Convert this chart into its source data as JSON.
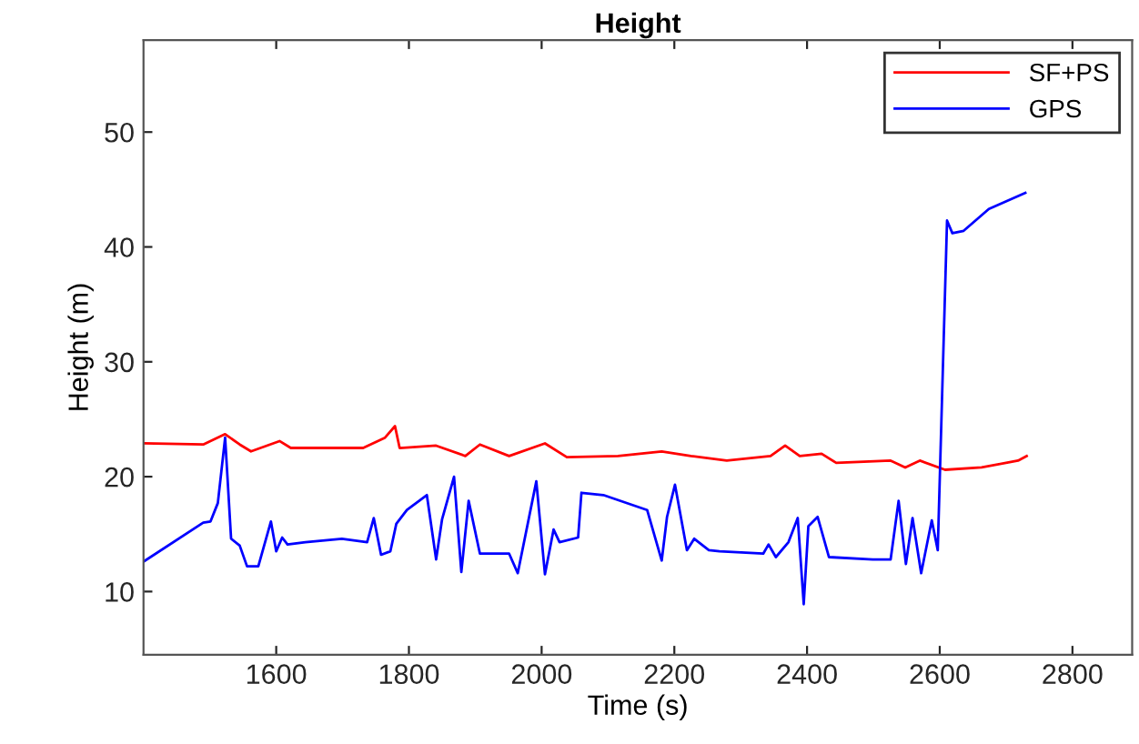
{
  "chart_data": {
    "type": "line",
    "title": "Height",
    "xlabel": "Time (s)",
    "ylabel": "Height (m)",
    "xlim": [
      1400,
      2890
    ],
    "ylim": [
      4.5,
      58
    ],
    "xticks": [
      1600,
      1800,
      2000,
      2200,
      2400,
      2600,
      2800
    ],
    "yticks": [
      10,
      20,
      30,
      40,
      50
    ],
    "grid": false,
    "legend": "top right",
    "series": [
      {
        "name": "SF+PS",
        "color": "#ff0000",
        "x": [
          1400,
          1490,
          1523,
          1545,
          1562,
          1605,
          1622,
          1731,
          1764,
          1779,
          1786,
          1841,
          1885,
          1907,
          1951,
          2005,
          2038,
          2115,
          2181,
          2225,
          2279,
          2345,
          2367,
          2389,
          2422,
          2444,
          2526,
          2548,
          2570,
          2608,
          2663,
          2718,
          2731
        ],
        "values": [
          22.9,
          22.8,
          23.7,
          22.8,
          22.2,
          23.1,
          22.5,
          22.5,
          23.4,
          24.4,
          22.5,
          22.7,
          21.8,
          22.8,
          21.8,
          22.9,
          21.7,
          21.8,
          22.2,
          21.8,
          21.4,
          21.8,
          22.7,
          21.8,
          22.0,
          21.2,
          21.4,
          20.8,
          21.4,
          20.6,
          20.8,
          21.4,
          21.8
        ]
      },
      {
        "name": "GPS",
        "color": "#0000ff",
        "x": [
          1400,
          1490,
          1501,
          1512,
          1523,
          1532,
          1545,
          1556,
          1573,
          1592,
          1600,
          1609,
          1617,
          1644,
          1699,
          1737,
          1747,
          1758,
          1772,
          1781,
          1797,
          1827,
          1841,
          1850,
          1868,
          1879,
          1890,
          1907,
          1951,
          1964,
          1992,
          2005,
          2018,
          2027,
          2055,
          2060,
          2093,
          2159,
          2181,
          2189,
          2201,
          2219,
          2230,
          2252,
          2268,
          2334,
          2342,
          2353,
          2372,
          2386,
          2395,
          2402,
          2416,
          2433,
          2499,
          2526,
          2538,
          2549,
          2559,
          2572,
          2588,
          2597,
          2607,
          2611,
          2619,
          2636,
          2674,
          2729
        ],
        "values": [
          12.6,
          16.0,
          16.1,
          17.7,
          23.4,
          14.6,
          14.0,
          12.2,
          12.2,
          16.1,
          13.5,
          14.7,
          14.1,
          14.3,
          14.6,
          14.3,
          16.4,
          13.2,
          13.5,
          15.9,
          17.1,
          18.4,
          12.8,
          16.3,
          20.0,
          11.7,
          17.9,
          13.3,
          13.3,
          11.6,
          19.6,
          11.5,
          15.4,
          14.3,
          14.7,
          18.6,
          18.4,
          17.1,
          12.7,
          16.5,
          19.3,
          13.6,
          14.6,
          13.6,
          13.5,
          13.3,
          14.1,
          13.0,
          14.3,
          16.4,
          8.9,
          15.7,
          16.5,
          13.0,
          12.8,
          12.8,
          17.9,
          12.4,
          16.4,
          11.6,
          16.2,
          13.6,
          34.1,
          42.3,
          41.2,
          41.4,
          43.3,
          44.7
        ]
      }
    ]
  }
}
